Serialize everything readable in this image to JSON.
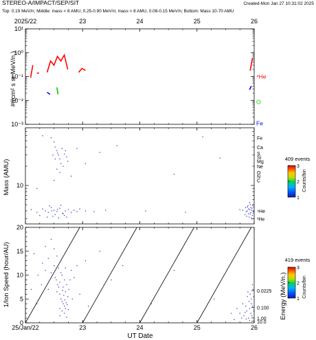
{
  "header": {
    "title": "STEREO-A/IMPACT/SEP/SIT",
    "created": "Created-Mon Jan 27 10:31:02 2025",
    "subtitle": "Top: 0.19 MeV/n; Middle: mass < 8 AMU, 0.25-0.90 MeV/n; mass > 8 AMU, 0.08-0.15 MeV/n; Bottom: Mass 10-70 AMU"
  },
  "colors": {
    "he4": "#ff0000",
    "o": "#00c800",
    "fe": "#0000ff",
    "dots": "#3a3acc",
    "frame": "#000000"
  },
  "chart_data": [
    {
      "type": "line",
      "panel": "top",
      "ylabel": "#/(cm² s sr MeV/n.)",
      "yscale": "log",
      "ylim": [
        0.001,
        10
      ],
      "yticks": [
        "10⁻³",
        "10⁻²",
        "10⁻¹",
        "10⁰",
        "10¹"
      ],
      "x_top_label": "2025/22",
      "x_top_ticks": [
        "23",
        "24",
        "25",
        "26"
      ],
      "xlim": [
        22,
        26
      ],
      "series": [
        {
          "name": "⁴He",
          "color": "#ff0000",
          "segments": [
            [
              [
                22.09,
                0.09
              ],
              [
                22.13,
                0.3
              ]
            ],
            [
              [
                22.22,
                0.14
              ]
            ],
            [
              [
                22.38,
                0.15
              ],
              [
                22.44,
                0.45
              ],
              [
                22.5,
                0.3
              ],
              [
                22.56,
                0.7
              ],
              [
                22.62,
                0.45
              ],
              [
                22.68,
                0.8
              ],
              [
                22.74,
                0.2
              ]
            ],
            [
              [
                22.93,
                0.15
              ],
              [
                22.99,
                0.22
              ],
              [
                23.05,
                0.18
              ]
            ],
            [
              [
                25.93,
                0.18
              ],
              [
                25.97,
                0.6
              ]
            ]
          ]
        },
        {
          "name": "O",
          "color": "#00c800",
          "segments": [
            [
              [
                22.55,
                0.035
              ],
              [
                22.57,
                0.018
              ]
            ]
          ]
        },
        {
          "name": "Fe",
          "color": "#0000ff",
          "segments": [
            [
              [
                22.38,
                0.022
              ],
              [
                22.43,
                0.018
              ]
            ],
            [
              [
                25.92,
                0.028
              ],
              [
                25.95,
                0.04
              ]
            ]
          ]
        }
      ]
    },
    {
      "type": "scatter",
      "panel": "middle",
      "ylabel": "Mass (AMU)",
      "yscale": "log",
      "ylim": [
        2.5,
        80
      ],
      "yticks": [
        "10"
      ],
      "xlim": [
        22,
        26
      ],
      "events_label": "409 events",
      "colorbar_label": "Counts/bin",
      "colorbar_ticks": [
        "3",
        "2",
        "1"
      ],
      "species_labels": [
        "Fe",
        "Ca",
        "Si",
        "S",
        "Mg",
        "Ne",
        "O",
        "N",
        "C",
        "⁴He",
        "³He"
      ],
      "points": [
        [
          22.45,
          56
        ],
        [
          22.5,
          48
        ],
        [
          22.52,
          40
        ],
        [
          22.55,
          35
        ],
        [
          22.58,
          30
        ],
        [
          22.6,
          26
        ],
        [
          22.62,
          22
        ],
        [
          22.66,
          20
        ],
        [
          22.7,
          35
        ],
        [
          22.72,
          28
        ],
        [
          22.74,
          24
        ],
        [
          22.55,
          18
        ],
        [
          22.6,
          16
        ],
        [
          22.3,
          60
        ],
        [
          22.9,
          38
        ],
        [
          23.05,
          22
        ],
        [
          22.48,
          30
        ],
        [
          22.52,
          26
        ],
        [
          22.56,
          32
        ],
        [
          22.64,
          38
        ],
        [
          22.68,
          31
        ],
        [
          22.5,
          12
        ],
        [
          22.8,
          14
        ],
        [
          22.2,
          9
        ],
        [
          23.6,
          42
        ],
        [
          24.6,
          15
        ],
        [
          25.4,
          27
        ],
        [
          25.1,
          58
        ],
        [
          23.3,
          33
        ],
        [
          22.3,
          4.3
        ],
        [
          22.35,
          4.0
        ],
        [
          22.4,
          3.8
        ],
        [
          22.45,
          4.5
        ],
        [
          22.5,
          4.1
        ],
        [
          22.55,
          3.9
        ],
        [
          22.6,
          4.4
        ],
        [
          22.65,
          3.7
        ],
        [
          22.7,
          4.0
        ],
        [
          22.75,
          4.2
        ],
        [
          22.8,
          3.8
        ],
        [
          22.85,
          4.1
        ],
        [
          22.9,
          3.9
        ],
        [
          22.95,
          4.3
        ],
        [
          23.05,
          4.0
        ],
        [
          22.38,
          3.2
        ],
        [
          22.48,
          3.3
        ],
        [
          22.58,
          3.1
        ],
        [
          22.68,
          3.4
        ],
        [
          22.42,
          4.8
        ],
        [
          22.62,
          4.9
        ],
        [
          22.72,
          3.2
        ],
        [
          22.52,
          3.5
        ],
        [
          22.46,
          4.0
        ],
        [
          22.56,
          4.2
        ],
        [
          22.66,
          3.6
        ],
        [
          23.2,
          3.9
        ],
        [
          23.4,
          4.1
        ],
        [
          22.1,
          4.2
        ],
        [
          22.2,
          3.8
        ],
        [
          22.25,
          3.4
        ],
        [
          24.1,
          4.0
        ],
        [
          24.8,
          3.8
        ],
        [
          25.85,
          4.5
        ],
        [
          25.88,
          4.0
        ],
        [
          25.9,
          3.6
        ],
        [
          25.92,
          4.2
        ],
        [
          25.94,
          3.8
        ],
        [
          25.96,
          4.4
        ],
        [
          25.98,
          4.0
        ],
        [
          25.87,
          3.3
        ],
        [
          25.91,
          3.2
        ],
        [
          25.95,
          3.1
        ],
        [
          25.97,
          3.4
        ],
        [
          25.89,
          4.8
        ],
        [
          25.93,
          5.0
        ],
        [
          25.99,
          4.6
        ],
        [
          25.86,
          3.9
        ],
        [
          25.9,
          4.3
        ],
        [
          25.94,
          4.5
        ],
        [
          25.98,
          3.7
        ],
        [
          25.8,
          4.1
        ],
        [
          25.84,
          3.5
        ],
        [
          25.96,
          3.0
        ],
        [
          25.92,
          5.4
        ],
        [
          25.99,
          3.9
        ],
        [
          25.88,
          4.6
        ],
        [
          25.75,
          4.2
        ],
        [
          25.97,
          4.9
        ],
        [
          25.93,
          3.6
        ],
        [
          25.95,
          4.1
        ]
      ]
    },
    {
      "type": "scatter",
      "panel": "bottom",
      "ylabel": "1/Ion Speed (hour/AU)",
      "ylim": [
        0,
        20
      ],
      "yticks": [
        "0",
        "5",
        "10",
        "15",
        "20"
      ],
      "xlabel": "UT Date",
      "xlim": [
        22,
        26
      ],
      "x_tick_labels": [
        "25/Jan/22",
        "23",
        "24",
        "25",
        "26"
      ],
      "right_axis_label": "Energy (MeV/n.)",
      "right_axis_ticks": [
        "0.0225",
        "0.100",
        "1.00",
        "10.0"
      ],
      "events_label": "419 events",
      "colorbar_label": "Counts/bin",
      "colorbar_ticks": [
        "3",
        "2",
        "1"
      ],
      "velocity_dispersion_lines": [
        [
          [
            22.0,
            0
          ],
          [
            22.95,
            20
          ]
        ],
        [
          [
            23.0,
            0
          ],
          [
            23.95,
            20
          ]
        ],
        [
          [
            24.0,
            0
          ],
          [
            24.95,
            20
          ]
        ],
        [
          [
            25.0,
            0
          ],
          [
            25.95,
            20
          ]
        ]
      ],
      "points": [
        [
          22.3,
          12.5
        ],
        [
          22.35,
          11.0
        ],
        [
          22.4,
          13.5
        ],
        [
          22.45,
          10.5
        ],
        [
          22.5,
          12.0
        ],
        [
          22.52,
          9.5
        ],
        [
          22.55,
          14.0
        ],
        [
          22.58,
          11.5
        ],
        [
          22.6,
          8.5
        ],
        [
          22.62,
          13.0
        ],
        [
          22.64,
          10.0
        ],
        [
          22.66,
          7.5
        ],
        [
          22.68,
          9.0
        ],
        [
          22.7,
          6.5
        ],
        [
          22.72,
          8.0
        ],
        [
          22.74,
          5.5
        ],
        [
          22.76,
          7.0
        ],
        [
          22.6,
          6.0
        ],
        [
          22.62,
          5.0
        ],
        [
          22.64,
          4.5
        ],
        [
          22.66,
          4.0
        ],
        [
          22.68,
          3.5
        ],
        [
          22.7,
          3.0
        ],
        [
          22.58,
          7.5
        ],
        [
          22.56,
          8.0
        ],
        [
          22.54,
          9.0
        ],
        [
          22.65,
          6.8
        ],
        [
          22.67,
          5.8
        ],
        [
          22.69,
          4.8
        ],
        [
          22.71,
          4.2
        ],
        [
          22.73,
          3.8
        ],
        [
          22.75,
          2.8
        ],
        [
          22.6,
          3.0
        ],
        [
          22.64,
          2.5
        ],
        [
          22.68,
          2.0
        ],
        [
          22.5,
          15.5
        ],
        [
          22.35,
          16.0
        ],
        [
          22.45,
          17.5
        ],
        [
          22.8,
          11.0
        ],
        [
          22.85,
          9.5
        ],
        [
          22.9,
          12.0
        ],
        [
          22.28,
          8.0
        ],
        [
          22.22,
          10.0
        ],
        [
          22.95,
          6.0
        ],
        [
          23.05,
          13.0
        ],
        [
          22.15,
          14.5
        ],
        [
          22.4,
          7.0
        ],
        [
          22.55,
          6.5
        ],
        [
          22.62,
          10.5
        ],
        [
          22.7,
          11.5
        ],
        [
          22.78,
          9.0
        ],
        [
          22.82,
          5.0
        ],
        [
          22.6,
          1.5
        ],
        [
          22.72,
          1.2
        ],
        [
          23.1,
          3.5
        ],
        [
          23.3,
          15.0
        ],
        [
          23.5,
          9.0
        ],
        [
          23.7,
          12.0
        ],
        [
          24.2,
          4.0
        ],
        [
          24.6,
          11.0
        ],
        [
          25.3,
          5.0
        ],
        [
          22.1,
          7.0
        ],
        [
          22.2,
          4.0
        ],
        [
          25.7,
          3.0
        ],
        [
          25.75,
          2.0
        ],
        [
          25.8,
          4.0
        ],
        [
          25.82,
          1.5
        ],
        [
          25.85,
          3.5
        ],
        [
          25.87,
          2.5
        ],
        [
          25.88,
          5.5
        ],
        [
          25.9,
          1.0
        ],
        [
          25.91,
          4.5
        ],
        [
          25.92,
          3.0
        ],
        [
          25.93,
          6.0
        ],
        [
          25.94,
          2.0
        ],
        [
          25.95,
          5.0
        ],
        [
          25.96,
          1.5
        ],
        [
          25.97,
          3.5
        ],
        [
          25.98,
          7.0
        ],
        [
          25.99,
          2.5
        ],
        [
          25.86,
          0.8
        ],
        [
          25.89,
          6.5
        ],
        [
          25.92,
          0.5
        ],
        [
          25.95,
          4.0
        ],
        [
          25.97,
          8.0
        ],
        [
          25.84,
          2.2
        ],
        [
          25.78,
          1.0
        ],
        [
          25.6,
          2.0
        ],
        [
          25.65,
          0.7
        ],
        [
          25.99,
          5.5
        ]
      ]
    }
  ]
}
